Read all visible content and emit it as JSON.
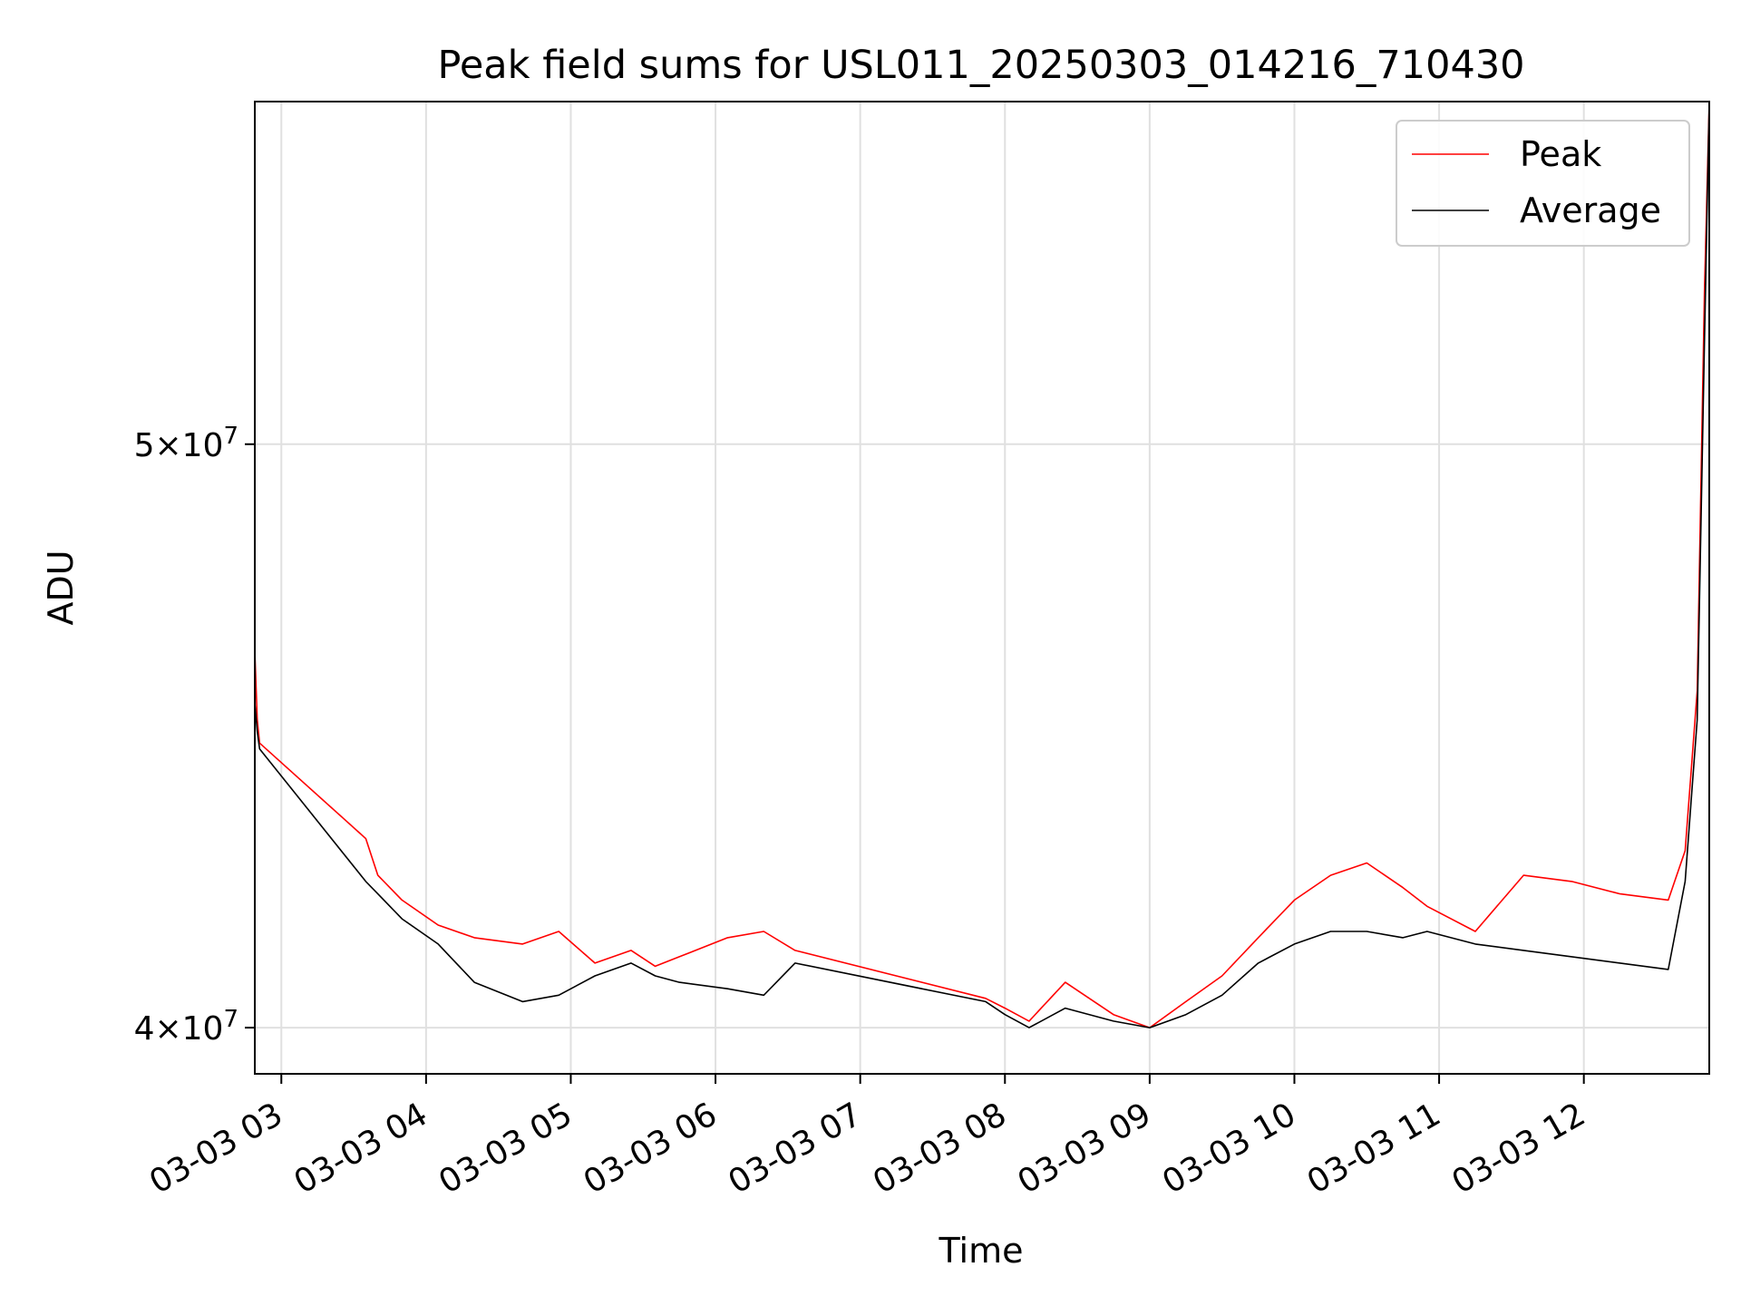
{
  "chart_data": {
    "type": "line",
    "title": "Peak field sums for USL011_20250303_014216_710430",
    "xlabel": "Time",
    "ylabel": "ADU",
    "y_scale": "log",
    "xlim": [
      "2025-03-03 02:49",
      "2025-03-03 12:52"
    ],
    "ylim": [
      39300000,
      57000000
    ],
    "x_ticks": [
      {
        "t": "2025-03-03 03:00",
        "label": "03-03 03"
      },
      {
        "t": "2025-03-03 04:00",
        "label": "03-03 04"
      },
      {
        "t": "2025-03-03 05:00",
        "label": "03-03 05"
      },
      {
        "t": "2025-03-03 06:00",
        "label": "03-03 06"
      },
      {
        "t": "2025-03-03 07:00",
        "label": "03-03 07"
      },
      {
        "t": "2025-03-03 08:00",
        "label": "03-03 08"
      },
      {
        "t": "2025-03-03 09:00",
        "label": "03-03 09"
      },
      {
        "t": "2025-03-03 10:00",
        "label": "03-03 10"
      },
      {
        "t": "2025-03-03 11:00",
        "label": "03-03 11"
      },
      {
        "t": "2025-03-03 12:00",
        "label": "03-03 12"
      }
    ],
    "y_ticks": [
      {
        "value": 40000000,
        "mant": "4",
        "exp": "7"
      },
      {
        "value": 50000000,
        "mant": "5",
        "exp": "7"
      }
    ],
    "grid": true,
    "legend_position": "top-right",
    "series": [
      {
        "name": "Peak",
        "color": "#ff0000",
        "x": [
          "2025-03-03 02:49",
          "2025-03-03 02:50",
          "2025-03-03 02:51",
          "2025-03-03 03:35",
          "2025-03-03 03:40",
          "2025-03-03 03:50",
          "2025-03-03 04:05",
          "2025-03-03 04:20",
          "2025-03-03 04:40",
          "2025-03-03 04:55",
          "2025-03-03 05:10",
          "2025-03-03 05:25",
          "2025-03-03 05:35",
          "2025-03-03 05:45",
          "2025-03-03 06:05",
          "2025-03-03 06:20",
          "2025-03-03 06:33",
          "2025-03-03 07:52",
          "2025-03-03 08:00",
          "2025-03-03 08:10",
          "2025-03-03 08:25",
          "2025-03-03 08:45",
          "2025-03-03 09:00",
          "2025-03-03 09:15",
          "2025-03-03 09:30",
          "2025-03-03 09:45",
          "2025-03-03 10:00",
          "2025-03-03 10:15",
          "2025-03-03 10:30",
          "2025-03-03 10:45",
          "2025-03-03 10:55",
          "2025-03-03 11:15",
          "2025-03-03 11:35",
          "2025-03-03 11:55",
          "2025-03-03 12:15",
          "2025-03-03 12:35",
          "2025-03-03 12:42",
          "2025-03-03 12:47",
          "2025-03-03 12:50",
          "2025-03-03 12:52"
        ],
        "y": [
          46200000,
          45000000,
          44600000,
          43000000,
          42400000,
          42000000,
          41600000,
          41400000,
          41300000,
          41500000,
          41000000,
          41200000,
          40950000,
          41100000,
          41400000,
          41500000,
          41200000,
          40450000,
          40300000,
          40100000,
          40700000,
          40200000,
          40000000,
          40400000,
          40800000,
          41400000,
          42000000,
          42400000,
          42600000,
          42200000,
          41900000,
          41500000,
          42400000,
          42300000,
          42100000,
          42000000,
          42800000,
          45500000,
          53000000,
          57000000
        ]
      },
      {
        "name": "Average",
        "color": "#000000",
        "x": [
          "2025-03-03 02:49",
          "2025-03-03 02:50",
          "2025-03-03 02:51",
          "2025-03-03 03:35",
          "2025-03-03 03:40",
          "2025-03-03 03:50",
          "2025-03-03 04:05",
          "2025-03-03 04:20",
          "2025-03-03 04:40",
          "2025-03-03 04:55",
          "2025-03-03 05:10",
          "2025-03-03 05:25",
          "2025-03-03 05:35",
          "2025-03-03 05:45",
          "2025-03-03 06:05",
          "2025-03-03 06:20",
          "2025-03-03 06:33",
          "2025-03-03 07:52",
          "2025-03-03 08:00",
          "2025-03-03 08:10",
          "2025-03-03 08:25",
          "2025-03-03 08:45",
          "2025-03-03 09:00",
          "2025-03-03 09:15",
          "2025-03-03 09:30",
          "2025-03-03 09:45",
          "2025-03-03 10:00",
          "2025-03-03 10:15",
          "2025-03-03 10:30",
          "2025-03-03 10:45",
          "2025-03-03 10:55",
          "2025-03-03 11:15",
          "2025-03-03 11:35",
          "2025-03-03 11:55",
          "2025-03-03 12:15",
          "2025-03-03 12:35",
          "2025-03-03 12:42",
          "2025-03-03 12:47",
          "2025-03-03 12:50",
          "2025-03-03 12:52"
        ],
        "y": [
          45300000,
          44800000,
          44500000,
          42300000,
          42100000,
          41700000,
          41300000,
          40700000,
          40400000,
          40500000,
          40800000,
          41000000,
          40800000,
          40700000,
          40600000,
          40500000,
          41000000,
          40400000,
          40200000,
          40000000,
          40300000,
          40100000,
          40000000,
          40200000,
          40500000,
          41000000,
          41300000,
          41500000,
          41500000,
          41400000,
          41500000,
          41300000,
          41200000,
          41100000,
          41000000,
          40900000,
          42300000,
          45000000,
          52000000,
          57000000
        ]
      }
    ]
  }
}
